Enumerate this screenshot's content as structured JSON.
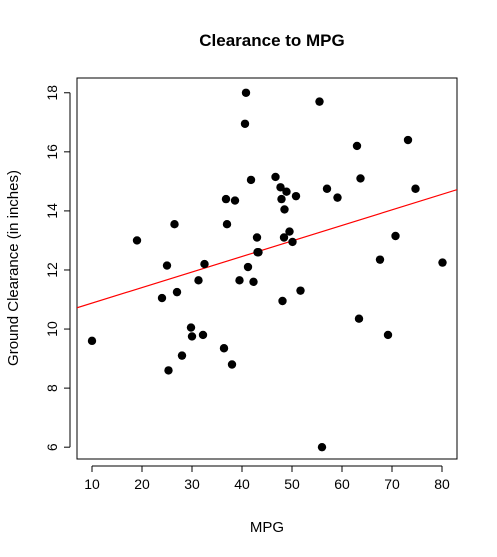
{
  "chart_data": {
    "type": "scatter",
    "title": "Clearance to MPG",
    "xlabel": "MPG",
    "ylabel": "Ground Clearance (in inches)",
    "xlim": [
      7,
      83
    ],
    "ylim": [
      5.6,
      18.5
    ],
    "xticks": [
      10,
      20,
      30,
      40,
      50,
      60,
      70,
      80
    ],
    "yticks": [
      6,
      8,
      10,
      12,
      14,
      16,
      18
    ],
    "grid": false,
    "legend": "none",
    "point_color": "#000000",
    "line_color": "#ff0000",
    "frame_color": "#000000",
    "regression_line": {
      "x": [
        7,
        83
      ],
      "y": [
        10.72,
        14.72
      ]
    },
    "series": [
      {
        "x": [
          10,
          19,
          24,
          25,
          25.3,
          26.5,
          27,
          28,
          29.8,
          30,
          31.3,
          32.2,
          32.5,
          36.4,
          36.8,
          37,
          38,
          38.6,
          39.5,
          40.6,
          40.8,
          41.2,
          41.8,
          42.3,
          43,
          43.1,
          43.3,
          46.7,
          47.7,
          47.9,
          48.1,
          48.4,
          48.5,
          48.9,
          49.5,
          50.1,
          50.8,
          51.7,
          55.5,
          56,
          57,
          59.1,
          63,
          63.4,
          63.7,
          67.6,
          69.2,
          70.7,
          73.2,
          74.7,
          80.1
        ],
        "y": [
          9.6,
          13,
          11.05,
          12.15,
          8.6,
          13.55,
          11.25,
          9.1,
          10.05,
          9.75,
          11.65,
          9.8,
          12.2,
          9.35,
          14.4,
          13.55,
          8.8,
          14.35,
          11.65,
          16.95,
          18,
          12.1,
          15.05,
          11.6,
          13.1,
          12.6,
          12.6,
          15.15,
          14.8,
          14.4,
          10.95,
          13.1,
          14.05,
          14.65,
          13.3,
          12.95,
          14.5,
          11.3,
          17.7,
          6,
          14.75,
          14.45,
          16.2,
          10.35,
          15.1,
          12.35,
          9.8,
          13.15,
          16.4,
          14.75,
          12.25
        ]
      }
    ]
  }
}
